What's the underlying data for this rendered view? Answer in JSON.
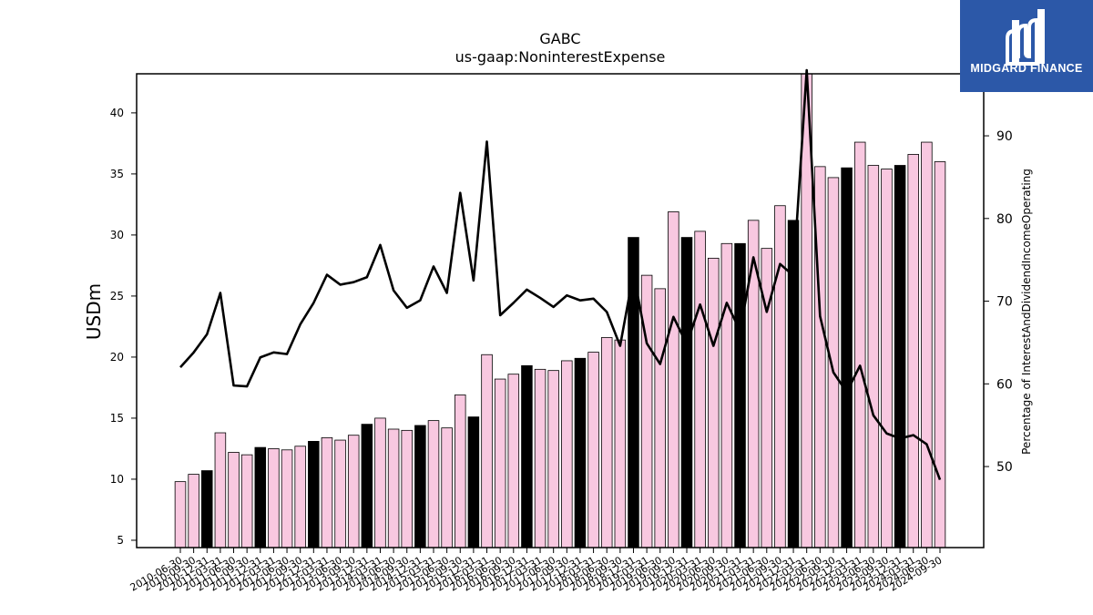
{
  "chart_data": {
    "type": "bar",
    "title": "GABC",
    "subtitle": "us-gaap:NoninterestExpense",
    "ylabel": "USDm",
    "y2label": "Percentage of InterestAndDividendIncomeOperating",
    "ylim": [
      4.4,
      43.2
    ],
    "y2lim": [
      40.2,
      97.5
    ],
    "yticks": [
      5,
      10,
      15,
      20,
      25,
      30,
      35,
      40
    ],
    "y2ticks": [
      50,
      60,
      70,
      80,
      90
    ],
    "colors": {
      "quarter_bar": "#f8c8e0",
      "annual_bar": "#000000",
      "edge": "#000000",
      "line": "#000000"
    },
    "categories": [
      "2010-06-30",
      "2010-09-30",
      "2010-12-31",
      "2011-03-31",
      "2011-06-30",
      "2011-09-30",
      "2011-12-31",
      "2012-03-31",
      "2012-06-30",
      "2012-09-30",
      "2012-12-31",
      "2013-03-31",
      "2013-06-30",
      "2013-09-30",
      "2013-12-31",
      "2014-03-31",
      "2014-06-30",
      "2014-09-30",
      "2014-12-31",
      "2015-03-31",
      "2015-06-30",
      "2015-09-30",
      "2015-12-31",
      "2016-03-31",
      "2016-06-30",
      "2016-09-30",
      "2016-12-31",
      "2017-03-31",
      "2017-06-30",
      "2017-09-30",
      "2017-12-31",
      "2018-03-31",
      "2018-06-30",
      "2018-09-30",
      "2018-12-31",
      "2019-03-31",
      "2019-06-30",
      "2019-09-30",
      "2019-12-31",
      "2020-03-31",
      "2020-06-30",
      "2020-09-30",
      "2020-12-31",
      "2021-03-31",
      "2021-06-30",
      "2021-09-30",
      "2021-12-31",
      "2022-03-31",
      "2022-06-30",
      "2022-09-30",
      "2022-12-31",
      "2023-03-31",
      "2023-06-30",
      "2023-09-30",
      "2023-12-31",
      "2024-03-31",
      "2024-06-30",
      "2024-09-30"
    ],
    "values": [
      9.8,
      10.4,
      10.7,
      13.8,
      12.2,
      12.0,
      12.6,
      12.5,
      12.4,
      12.7,
      13.1,
      13.4,
      13.2,
      13.6,
      14.5,
      15.0,
      14.1,
      14.0,
      14.4,
      14.8,
      14.2,
      16.9,
      15.1,
      20.2,
      18.2,
      18.6,
      19.3,
      19.0,
      18.9,
      19.7,
      19.9,
      20.4,
      21.6,
      21.4,
      29.8,
      26.7,
      25.6,
      31.9,
      29.8,
      30.3,
      28.1,
      29.3,
      29.3,
      31.2,
      28.9,
      32.4,
      31.2,
      43.5,
      35.6,
      34.7,
      35.5,
      37.6,
      35.7,
      35.4,
      35.7,
      36.6,
      37.6,
      36.0
    ],
    "annual": [
      false,
      false,
      true,
      false,
      false,
      false,
      true,
      false,
      false,
      false,
      true,
      false,
      false,
      false,
      true,
      false,
      false,
      false,
      true,
      false,
      false,
      false,
      true,
      false,
      false,
      false,
      true,
      false,
      false,
      false,
      true,
      false,
      false,
      false,
      true,
      false,
      false,
      false,
      true,
      false,
      false,
      false,
      true,
      false,
      false,
      false,
      true,
      false,
      false,
      false,
      true,
      false,
      false,
      false,
      true,
      false,
      false,
      false
    ],
    "line_values": [
      62.0,
      63.8,
      66.0,
      71.0,
      59.8,
      59.7,
      63.2,
      63.8,
      63.6,
      67.2,
      69.8,
      73.2,
      72.0,
      72.3,
      72.9,
      76.8,
      71.3,
      69.2,
      70.1,
      74.2,
      71.0,
      83.1,
      72.5,
      89.3,
      68.3,
      69.8,
      71.4,
      70.4,
      69.3,
      70.7,
      70.1,
      70.3,
      68.7,
      64.6,
      73.4,
      64.9,
      62.4,
      68.1,
      64.8,
      69.6,
      64.6,
      69.8,
      66.4,
      75.3,
      68.7,
      74.5,
      73.1,
      98.2,
      68.2,
      61.4,
      59.0,
      62.2,
      56.2,
      54.0,
      53.4,
      53.8,
      52.7,
      48.4
    ]
  },
  "logo": {
    "name": "MIDGARD FINANCE"
  }
}
